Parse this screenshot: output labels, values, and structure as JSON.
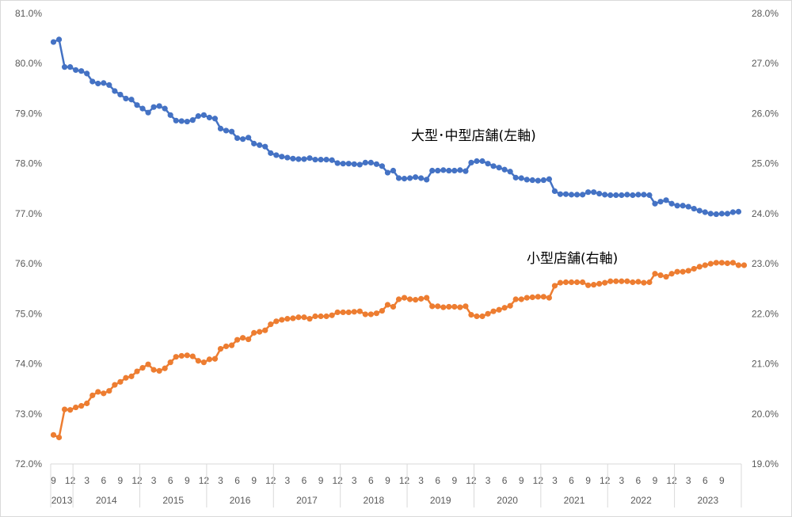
{
  "chart_data": {
    "type": "line",
    "dual_axis": true,
    "grid": false,
    "legend": "none",
    "y_left": {
      "ylim": [
        72.0,
        81.0
      ],
      "ticks": [
        "72.0%",
        "73.0%",
        "74.0%",
        "75.0%",
        "76.0%",
        "77.0%",
        "78.0%",
        "79.0%",
        "80.0%",
        "81.0%"
      ]
    },
    "y_right": {
      "ylim": [
        19.0,
        28.0
      ],
      "ticks": [
        "19.0%",
        "20.0%",
        "21.0%",
        "22.0%",
        "23.0%",
        "24.0%",
        "25.0%",
        "26.0%",
        "27.0%",
        "28.0%"
      ]
    },
    "x_month_labels": [
      "9",
      "12",
      "3",
      "6",
      "9",
      "12",
      "3",
      "6",
      "9",
      "12",
      "3",
      "6",
      "9",
      "12",
      "3",
      "6",
      "9",
      "12",
      "3",
      "6",
      "9",
      "12",
      "3",
      "6",
      "9",
      "12",
      "3",
      "6",
      "9",
      "12",
      "3",
      "6",
      "9",
      "12",
      "3",
      "6",
      "9",
      "12",
      "3",
      "6",
      "9"
    ],
    "x_year_labels": [
      "2013",
      "2014",
      "2015",
      "2016",
      "2017",
      "2018",
      "2019",
      "2020",
      "2021",
      "2022",
      "2023"
    ],
    "series": [
      {
        "name": "大型･中型店舗(左軸)",
        "axis": "left",
        "color": "#4472C4",
        "values": [
          80.43,
          80.48,
          79.93,
          79.93,
          79.87,
          79.85,
          79.8,
          79.64,
          79.6,
          79.61,
          79.57,
          79.45,
          79.38,
          79.3,
          79.28,
          79.17,
          79.1,
          79.02,
          79.13,
          79.15,
          79.1,
          78.97,
          78.86,
          78.85,
          78.84,
          78.87,
          78.95,
          78.97,
          78.92,
          78.9,
          78.7,
          78.66,
          78.64,
          78.51,
          78.49,
          78.52,
          78.4,
          78.37,
          78.34,
          78.21,
          78.17,
          78.14,
          78.12,
          78.1,
          78.09,
          78.09,
          78.11,
          78.08,
          78.08,
          78.08,
          78.07,
          78.01,
          78.0,
          78.0,
          77.99,
          77.98,
          78.02,
          78.02,
          77.99,
          77.95,
          77.82,
          77.86,
          77.71,
          77.7,
          77.71,
          77.73,
          77.71,
          77.68,
          77.86,
          77.86,
          77.87,
          77.86,
          77.86,
          77.87,
          77.85,
          78.02,
          78.05,
          78.05,
          78.0,
          77.95,
          77.92,
          77.88,
          77.84,
          77.72,
          77.71,
          77.68,
          77.67,
          77.66,
          77.67,
          77.69,
          77.45,
          77.39,
          77.39,
          77.38,
          77.38,
          77.38,
          77.43,
          77.43,
          77.4,
          77.38,
          77.37,
          77.37,
          77.37,
          77.38,
          77.37,
          77.38,
          77.38,
          77.37,
          77.2,
          77.24,
          77.27,
          77.2,
          77.16,
          77.16,
          77.14,
          77.1,
          77.06,
          77.03,
          77.0,
          76.99,
          77.0,
          77.0,
          77.03,
          77.04
        ]
      },
      {
        "name": "小型店舗(右軸)",
        "axis": "right",
        "color": "#ED7D31",
        "values": [
          19.58,
          19.53,
          20.09,
          20.08,
          20.13,
          20.16,
          20.21,
          20.37,
          20.44,
          20.41,
          20.46,
          20.58,
          20.64,
          20.72,
          20.75,
          20.85,
          20.92,
          20.99,
          20.88,
          20.86,
          20.91,
          21.03,
          21.14,
          21.16,
          21.17,
          21.15,
          21.06,
          21.03,
          21.09,
          21.1,
          21.3,
          21.35,
          21.37,
          21.48,
          21.52,
          21.49,
          21.62,
          21.64,
          21.67,
          21.79,
          21.85,
          21.88,
          21.9,
          21.91,
          21.93,
          21.93,
          21.9,
          21.95,
          21.95,
          21.95,
          21.97,
          22.03,
          22.03,
          22.03,
          22.04,
          22.05,
          21.99,
          21.99,
          22.01,
          22.06,
          22.18,
          22.14,
          22.29,
          22.32,
          22.29,
          22.28,
          22.3,
          22.32,
          22.15,
          22.15,
          22.13,
          22.14,
          22.14,
          22.13,
          22.15,
          21.98,
          21.95,
          21.95,
          22.0,
          22.05,
          22.08,
          22.12,
          22.16,
          22.29,
          22.29,
          22.32,
          22.33,
          22.34,
          22.34,
          22.32,
          22.56,
          22.62,
          22.63,
          22.63,
          22.63,
          22.63,
          22.57,
          22.58,
          22.6,
          22.62,
          22.65,
          22.65,
          22.65,
          22.65,
          22.63,
          22.64,
          22.62,
          22.63,
          22.8,
          22.77,
          22.74,
          22.8,
          22.84,
          22.84,
          22.86,
          22.9,
          22.94,
          22.97,
          23.0,
          23.02,
          23.02,
          23.01,
          23.02,
          22.97,
          22.97
        ]
      }
    ]
  }
}
